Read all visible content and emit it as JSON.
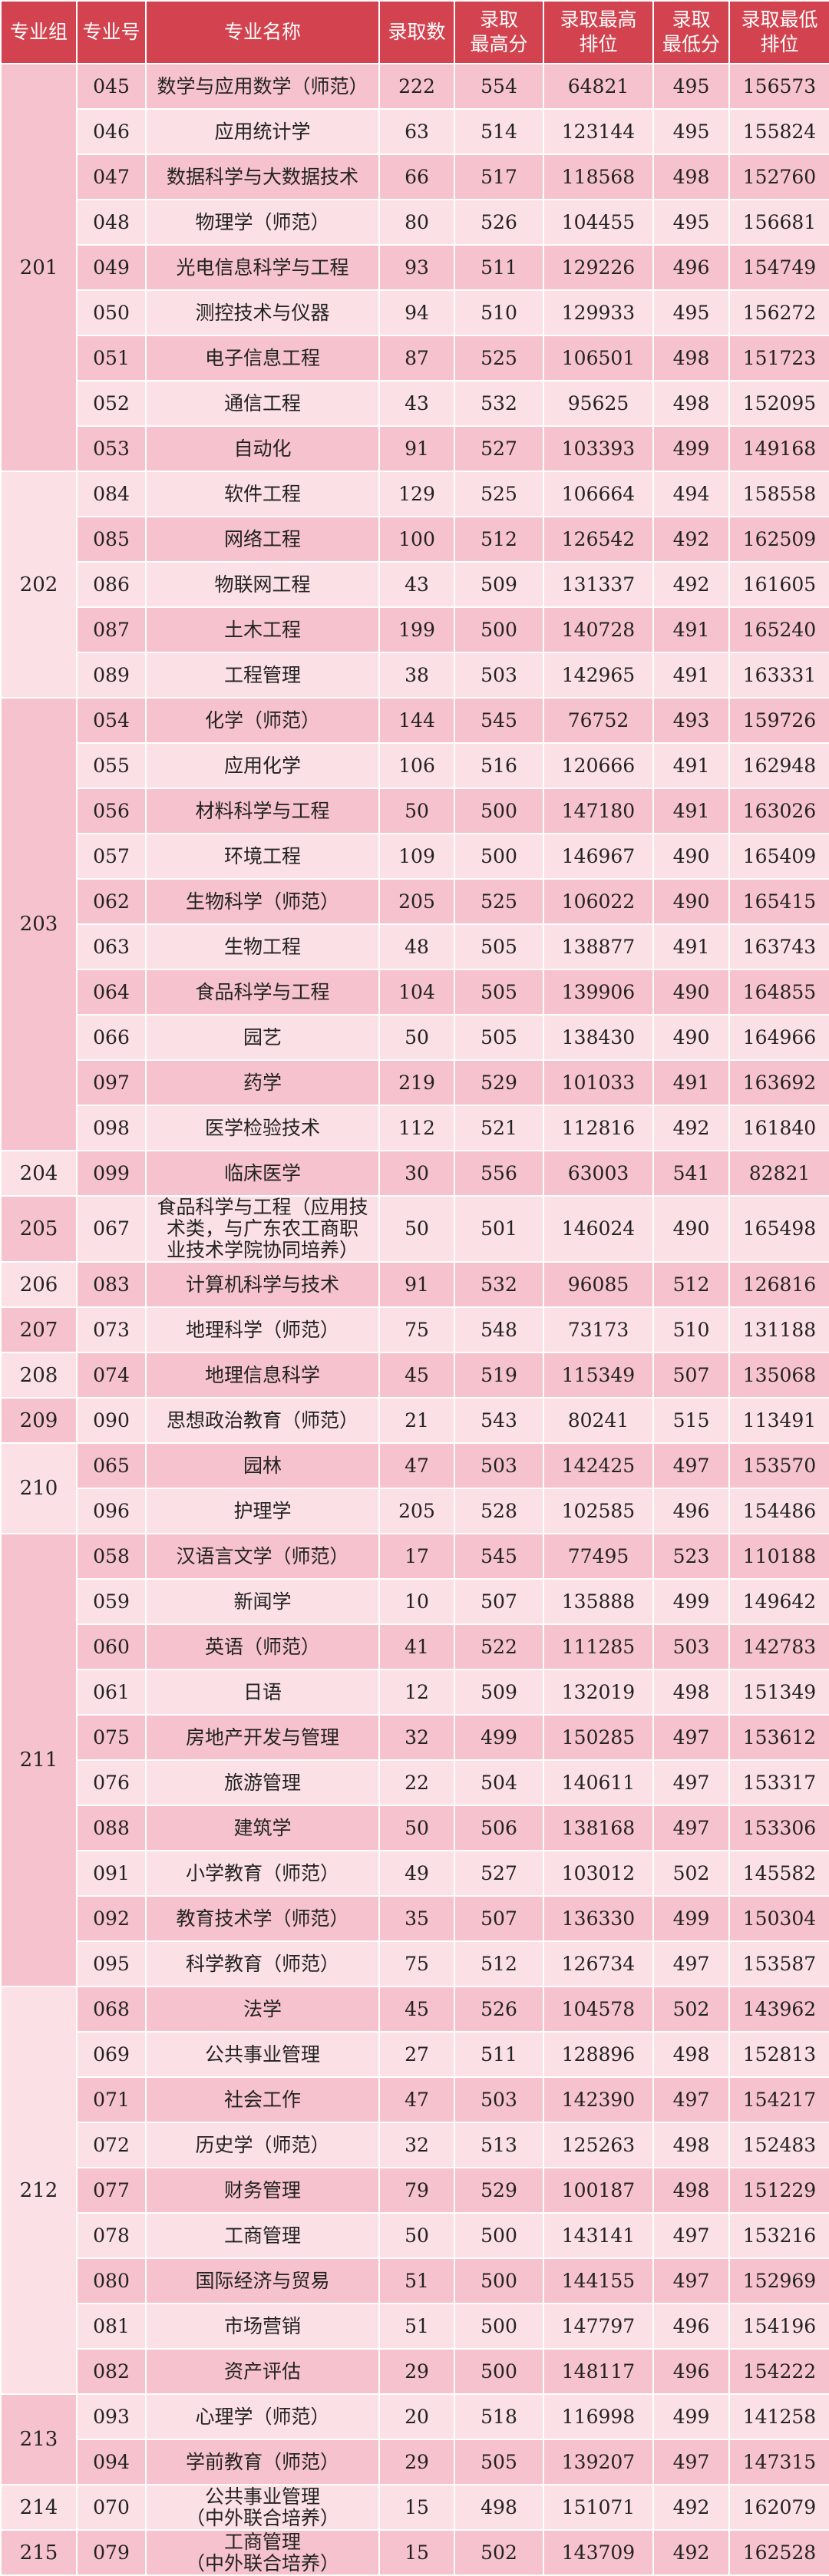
{
  "header": {
    "group": "专业组",
    "code": "专业号",
    "name": "专业名称",
    "count": "录取数",
    "max_score": "录取\n最高分",
    "max_rank": "录取最高\n排位",
    "min_score": "录取\n最低分",
    "min_rank": "录取最低\n排位"
  },
  "groups": [
    {
      "group": "201",
      "rows": [
        {
          "code": "045",
          "name": "数学与应用数学（师范）",
          "count": "222",
          "max_score": "554",
          "max_rank": "64821",
          "min_score": "495",
          "min_rank": "156573"
        },
        {
          "code": "046",
          "name": "应用统计学",
          "count": "63",
          "max_score": "514",
          "max_rank": "123144",
          "min_score": "495",
          "min_rank": "155824"
        },
        {
          "code": "047",
          "name": "数据科学与大数据技术",
          "count": "66",
          "max_score": "517",
          "max_rank": "118568",
          "min_score": "498",
          "min_rank": "152760"
        },
        {
          "code": "048",
          "name": "物理学（师范）",
          "count": "80",
          "max_score": "526",
          "max_rank": "104455",
          "min_score": "495",
          "min_rank": "156681"
        },
        {
          "code": "049",
          "name": "光电信息科学与工程",
          "count": "93",
          "max_score": "511",
          "max_rank": "129226",
          "min_score": "496",
          "min_rank": "154749"
        },
        {
          "code": "050",
          "name": "测控技术与仪器",
          "count": "94",
          "max_score": "510",
          "max_rank": "129933",
          "min_score": "495",
          "min_rank": "156272"
        },
        {
          "code": "051",
          "name": "电子信息工程",
          "count": "87",
          "max_score": "525",
          "max_rank": "106501",
          "min_score": "498",
          "min_rank": "151723"
        },
        {
          "code": "052",
          "name": "通信工程",
          "count": "43",
          "max_score": "532",
          "max_rank": "95625",
          "min_score": "498",
          "min_rank": "152095"
        },
        {
          "code": "053",
          "name": "自动化",
          "count": "91",
          "max_score": "527",
          "max_rank": "103393",
          "min_score": "499",
          "min_rank": "149168"
        }
      ]
    },
    {
      "group": "202",
      "rows": [
        {
          "code": "084",
          "name": "软件工程",
          "count": "129",
          "max_score": "525",
          "max_rank": "106664",
          "min_score": "494",
          "min_rank": "158558"
        },
        {
          "code": "085",
          "name": "网络工程",
          "count": "100",
          "max_score": "512",
          "max_rank": "126542",
          "min_score": "492",
          "min_rank": "162509"
        },
        {
          "code": "086",
          "name": "物联网工程",
          "count": "43",
          "max_score": "509",
          "max_rank": "131337",
          "min_score": "492",
          "min_rank": "161605"
        },
        {
          "code": "087",
          "name": "土木工程",
          "count": "199",
          "max_score": "500",
          "max_rank": "140728",
          "min_score": "491",
          "min_rank": "165240"
        },
        {
          "code": "089",
          "name": "工程管理",
          "count": "38",
          "max_score": "503",
          "max_rank": "142965",
          "min_score": "491",
          "min_rank": "163331"
        }
      ]
    },
    {
      "group": "203",
      "rows": [
        {
          "code": "054",
          "name": "化学（师范）",
          "count": "144",
          "max_score": "545",
          "max_rank": "76752",
          "min_score": "493",
          "min_rank": "159726"
        },
        {
          "code": "055",
          "name": "应用化学",
          "count": "106",
          "max_score": "516",
          "max_rank": "120666",
          "min_score": "491",
          "min_rank": "162948"
        },
        {
          "code": "056",
          "name": "材料科学与工程",
          "count": "50",
          "max_score": "500",
          "max_rank": "147180",
          "min_score": "491",
          "min_rank": "163026"
        },
        {
          "code": "057",
          "name": "环境工程",
          "count": "109",
          "max_score": "500",
          "max_rank": "146967",
          "min_score": "490",
          "min_rank": "165409"
        },
        {
          "code": "062",
          "name": "生物科学（师范）",
          "count": "205",
          "max_score": "525",
          "max_rank": "106022",
          "min_score": "490",
          "min_rank": "165415"
        },
        {
          "code": "063",
          "name": "生物工程",
          "count": "48",
          "max_score": "505",
          "max_rank": "138877",
          "min_score": "491",
          "min_rank": "163743"
        },
        {
          "code": "064",
          "name": "食品科学与工程",
          "count": "104",
          "max_score": "505",
          "max_rank": "139906",
          "min_score": "490",
          "min_rank": "164855"
        },
        {
          "code": "066",
          "name": "园艺",
          "count": "50",
          "max_score": "505",
          "max_rank": "138430",
          "min_score": "490",
          "min_rank": "164966"
        },
        {
          "code": "097",
          "name": "药学",
          "count": "219",
          "max_score": "529",
          "max_rank": "101033",
          "min_score": "491",
          "min_rank": "163692"
        },
        {
          "code": "098",
          "name": "医学检验技术",
          "count": "112",
          "max_score": "521",
          "max_rank": "112816",
          "min_score": "492",
          "min_rank": "161840"
        }
      ]
    },
    {
      "group": "204",
      "rows": [
        {
          "code": "099",
          "name": "临床医学",
          "count": "30",
          "max_score": "556",
          "max_rank": "63003",
          "min_score": "541",
          "min_rank": "82821"
        }
      ]
    },
    {
      "group": "205",
      "rows": [
        {
          "code": "067",
          "name": "食品科学与工程（应用技\n术类，与广东农工商职\n业技术学院协同培养）",
          "count": "50",
          "max_score": "501",
          "max_rank": "146024",
          "min_score": "490",
          "min_rank": "165498"
        }
      ]
    },
    {
      "group": "206",
      "rows": [
        {
          "code": "083",
          "name": "计算机科学与技术",
          "count": "91",
          "max_score": "532",
          "max_rank": "96085",
          "min_score": "512",
          "min_rank": "126816"
        }
      ]
    },
    {
      "group": "207",
      "rows": [
        {
          "code": "073",
          "name": "地理科学（师范）",
          "count": "75",
          "max_score": "548",
          "max_rank": "73173",
          "min_score": "510",
          "min_rank": "131188"
        }
      ]
    },
    {
      "group": "208",
      "rows": [
        {
          "code": "074",
          "name": "地理信息科学",
          "count": "45",
          "max_score": "519",
          "max_rank": "115349",
          "min_score": "507",
          "min_rank": "135068"
        }
      ]
    },
    {
      "group": "209",
      "rows": [
        {
          "code": "090",
          "name": "思想政治教育（师范）",
          "count": "21",
          "max_score": "543",
          "max_rank": "80241",
          "min_score": "515",
          "min_rank": "113491"
        }
      ]
    },
    {
      "group": "210",
      "rows": [
        {
          "code": "065",
          "name": "园林",
          "count": "47",
          "max_score": "503",
          "max_rank": "142425",
          "min_score": "497",
          "min_rank": "153570"
        },
        {
          "code": "096",
          "name": "护理学",
          "count": "205",
          "max_score": "528",
          "max_rank": "102585",
          "min_score": "496",
          "min_rank": "154486"
        }
      ]
    },
    {
      "group": "211",
      "rows": [
        {
          "code": "058",
          "name": "汉语言文学（师范）",
          "count": "17",
          "max_score": "545",
          "max_rank": "77495",
          "min_score": "523",
          "min_rank": "110188"
        },
        {
          "code": "059",
          "name": "新闻学",
          "count": "10",
          "max_score": "507",
          "max_rank": "135888",
          "min_score": "499",
          "min_rank": "149642"
        },
        {
          "code": "060",
          "name": "英语（师范）",
          "count": "41",
          "max_score": "522",
          "max_rank": "111285",
          "min_score": "503",
          "min_rank": "142783"
        },
        {
          "code": "061",
          "name": "日语",
          "count": "12",
          "max_score": "509",
          "max_rank": "132019",
          "min_score": "498",
          "min_rank": "151349"
        },
        {
          "code": "075",
          "name": "房地产开发与管理",
          "count": "32",
          "max_score": "499",
          "max_rank": "150285",
          "min_score": "497",
          "min_rank": "153612"
        },
        {
          "code": "076",
          "name": "旅游管理",
          "count": "22",
          "max_score": "504",
          "max_rank": "140611",
          "min_score": "497",
          "min_rank": "153317"
        },
        {
          "code": "088",
          "name": "建筑学",
          "count": "50",
          "max_score": "506",
          "max_rank": "138168",
          "min_score": "497",
          "min_rank": "153306"
        },
        {
          "code": "091",
          "name": "小学教育（师范）",
          "count": "49",
          "max_score": "527",
          "max_rank": "103012",
          "min_score": "502",
          "min_rank": "145582"
        },
        {
          "code": "092",
          "name": "教育技术学（师范）",
          "count": "35",
          "max_score": "507",
          "max_rank": "136330",
          "min_score": "499",
          "min_rank": "150304"
        },
        {
          "code": "095",
          "name": "科学教育（师范）",
          "count": "75",
          "max_score": "512",
          "max_rank": "126734",
          "min_score": "497",
          "min_rank": "153587"
        }
      ]
    },
    {
      "group": "212",
      "rows": [
        {
          "code": "068",
          "name": "法学",
          "count": "45",
          "max_score": "526",
          "max_rank": "104578",
          "min_score": "502",
          "min_rank": "143962"
        },
        {
          "code": "069",
          "name": "公共事业管理",
          "count": "27",
          "max_score": "511",
          "max_rank": "128896",
          "min_score": "498",
          "min_rank": "152813"
        },
        {
          "code": "071",
          "name": "社会工作",
          "count": "47",
          "max_score": "503",
          "max_rank": "142390",
          "min_score": "497",
          "min_rank": "154217"
        },
        {
          "code": "072",
          "name": "历史学（师范）",
          "count": "32",
          "max_score": "513",
          "max_rank": "125263",
          "min_score": "498",
          "min_rank": "152483"
        },
        {
          "code": "077",
          "name": "财务管理",
          "count": "79",
          "max_score": "529",
          "max_rank": "100187",
          "min_score": "498",
          "min_rank": "151229"
        },
        {
          "code": "078",
          "name": "工商管理",
          "count": "50",
          "max_score": "500",
          "max_rank": "143141",
          "min_score": "497",
          "min_rank": "153216"
        },
        {
          "code": "080",
          "name": "国际经济与贸易",
          "count": "51",
          "max_score": "500",
          "max_rank": "144155",
          "min_score": "497",
          "min_rank": "152969"
        },
        {
          "code": "081",
          "name": "市场营销",
          "count": "51",
          "max_score": "500",
          "max_rank": "147797",
          "min_score": "496",
          "min_rank": "154196"
        },
        {
          "code": "082",
          "name": "资产评估",
          "count": "29",
          "max_score": "500",
          "max_rank": "148117",
          "min_score": "496",
          "min_rank": "154222"
        }
      ]
    },
    {
      "group": "213",
      "rows": [
        {
          "code": "093",
          "name": "心理学（师范）",
          "count": "20",
          "max_score": "518",
          "max_rank": "116998",
          "min_score": "499",
          "min_rank": "141258"
        },
        {
          "code": "094",
          "name": "学前教育（师范）",
          "count": "29",
          "max_score": "505",
          "max_rank": "139207",
          "min_score": "497",
          "min_rank": "147315"
        }
      ]
    },
    {
      "group": "214",
      "rows": [
        {
          "code": "070",
          "name": "公共事业管理\n（中外联合培养）",
          "count": "15",
          "max_score": "498",
          "max_rank": "151071",
          "min_score": "492",
          "min_rank": "162079"
        }
      ]
    },
    {
      "group": "215",
      "rows": [
        {
          "code": "079",
          "name": "工商管理\n（中外联合培养）",
          "count": "15",
          "max_score": "502",
          "max_rank": "143709",
          "min_score": "492",
          "min_rank": "162528"
        }
      ]
    }
  ]
}
